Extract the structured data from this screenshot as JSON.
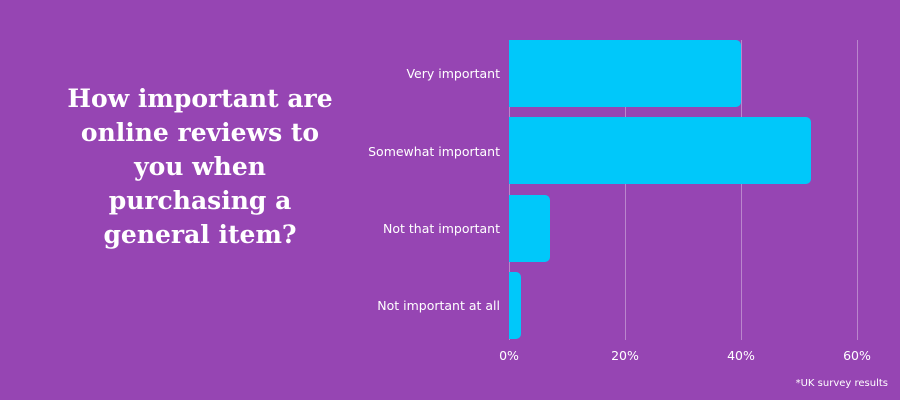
{
  "title": "How important are online reviews to you when purchasing a general item?",
  "title_lines": [
    "How important are",
    "online reviews to",
    "you when",
    "purchasing a",
    "general item?"
  ],
  "footnote": "*UK survey results",
  "colors": {
    "background": "#9645b3",
    "bar": "#00c8fa",
    "text": "#ffffff"
  },
  "chart_data": {
    "type": "bar",
    "orientation": "horizontal",
    "title": "How important are online reviews to you when purchasing a general item?",
    "categories": [
      "Very important",
      "Somewhat important",
      "Not that important",
      "Not important at all"
    ],
    "values": [
      40,
      52,
      7,
      2
    ],
    "xlabel": "",
    "ylabel": "",
    "xlim": [
      0,
      60
    ],
    "xticks": [
      "0%",
      "20%",
      "40%",
      "60%"
    ],
    "grid": true,
    "unit": "%",
    "annotation": "*UK survey results"
  }
}
